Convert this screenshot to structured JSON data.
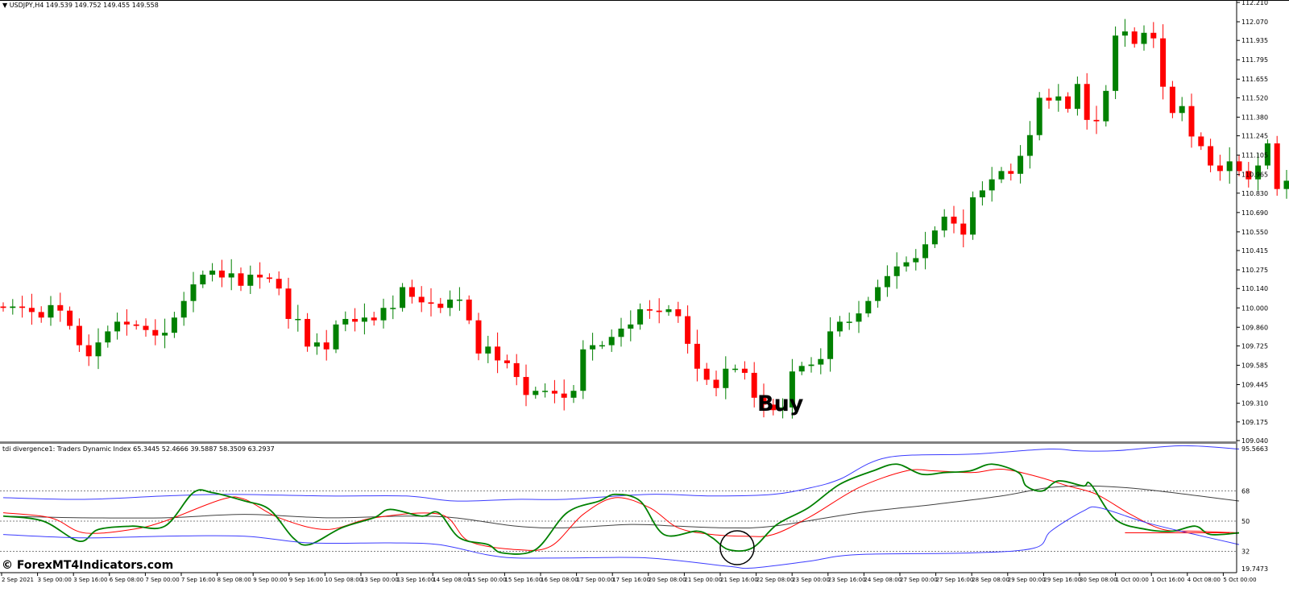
{
  "header": {
    "symbol_info": "USDJPY,H4  149.539 149.752 149.455 149.558",
    "indicator_info": "tdi divergence1: Traders Dynamic Index 65.3445 52.4666 39.5887 58.3509 63.2937"
  },
  "watermark": "© ForexMT4Indicators.com",
  "annotation": {
    "label": "Buy"
  },
  "colors": {
    "bull": "#008000",
    "bear": "#ff0000",
    "rsi_line": "#008000",
    "signal_line": "#ff0000",
    "bands": "#3b3bff",
    "base_line": "#404040",
    "levels": "#808080"
  },
  "chart_data": [
    {
      "type": "candlestick",
      "symbol": "USDJPY",
      "timeframe": "H4",
      "ylim": [
        109.04,
        112.21
      ],
      "y_ticks": [
        "112.210",
        "112.070",
        "111.935",
        "111.795",
        "111.655",
        "111.520",
        "111.380",
        "111.245",
        "111.105",
        "110.965",
        "110.830",
        "110.690",
        "110.550",
        "110.415",
        "110.275",
        "110.140",
        "110.000",
        "109.860",
        "109.725",
        "109.585",
        "109.445",
        "109.310",
        "109.175",
        "109.040"
      ],
      "x_ticks": [
        "2 Sep 2021",
        "3 Sep 00:00",
        "3 Sep 16:00",
        "6 Sep 08:00",
        "7 Sep 00:00",
        "7 Sep 16:00",
        "8 Sep 08:00",
        "9 Sep 00:00",
        "9 Sep 16:00",
        "10 Sep 08:00",
        "13 Sep 00:00",
        "13 Sep 16:00",
        "14 Sep 08:00",
        "15 Sep 00:00",
        "15 Sep 16:00",
        "16 Sep 08:00",
        "17 Sep 00:00",
        "17 Sep 16:00",
        "20 Sep 08:00",
        "21 Sep 00:00",
        "21 Sep 16:00",
        "22 Sep 08:00",
        "23 Sep 00:00",
        "23 Sep 16:00",
        "24 Sep 08:00",
        "27 Sep 00:00",
        "27 Sep 16:00",
        "28 Sep 08:00",
        "29 Sep 00:00",
        "29 Sep 16:00",
        "30 Sep 08:00",
        "1 Oct 00:00",
        "1 Oct 16:00",
        "4 Oct 08:00",
        "5 Oct 00:00"
      ],
      "closes": [
        110.0,
        110.01,
        110.0,
        109.97,
        109.93,
        110.02,
        109.98,
        109.87,
        109.73,
        109.65,
        109.75,
        109.83,
        109.9,
        109.88,
        109.87,
        109.84,
        109.8,
        109.82,
        109.93,
        110.05,
        110.17,
        110.24,
        110.27,
        110.22,
        110.25,
        110.16,
        110.24,
        110.22,
        110.21,
        110.14,
        109.92,
        109.92,
        109.72,
        109.75,
        109.7,
        109.88,
        109.92,
        109.9,
        109.93,
        109.91,
        110.0,
        110.0,
        110.15,
        110.08,
        110.04,
        110.03,
        110.0,
        110.06,
        110.06,
        109.91,
        109.67,
        109.72,
        109.62,
        109.6,
        109.5,
        109.37,
        109.4,
        109.4,
        109.38,
        109.35,
        109.4,
        109.7,
        109.73,
        109.73,
        109.79,
        109.85,
        109.88,
        109.99,
        109.98,
        109.97,
        109.99,
        109.94,
        109.74,
        109.56,
        109.48,
        109.42,
        109.56,
        109.56,
        109.53,
        109.35,
        109.3,
        109.26,
        109.28,
        109.54,
        109.58,
        109.59,
        109.63,
        109.83,
        109.9,
        109.9,
        109.96,
        110.05,
        110.15,
        110.23,
        110.3,
        110.33,
        110.36,
        110.46,
        110.56,
        110.66,
        110.61,
        110.53,
        110.8,
        110.85,
        110.93,
        110.99,
        110.97,
        111.1,
        111.25,
        111.52,
        111.5,
        111.53,
        111.44,
        111.62,
        111.36,
        111.35,
        111.57,
        111.97,
        112.0,
        111.91,
        111.99,
        111.95,
        111.6,
        111.41,
        111.46,
        111.24,
        111.17,
        111.03,
        110.99,
        111.06,
        110.99,
        110.93,
        111.03,
        111.19,
        110.86,
        110.92,
        110.93
      ]
    },
    {
      "type": "line",
      "title": "Traders Dynamic Index",
      "ylim": [
        19.7473,
        95.5663
      ],
      "y_ticks": [
        "95.5663",
        "68",
        "50",
        "32",
        "19.7473"
      ],
      "levels": [
        68,
        50,
        32
      ],
      "series": [
        {
          "key": "upper_band",
          "color": "#3b3bff",
          "points": [
            [
              0,
              64
            ],
            [
              8.5,
              63
            ],
            [
              17,
              65
            ],
            [
              23.7,
              66
            ],
            [
              34,
              65
            ],
            [
              42.4,
              65
            ],
            [
              47.5,
              62
            ],
            [
              54,
              63
            ],
            [
              59,
              63
            ],
            [
              68,
              66
            ],
            [
              74.6,
              65
            ],
            [
              81,
              66
            ],
            [
              85,
              70
            ],
            [
              88,
              75
            ],
            [
              93,
              88
            ],
            [
              102,
              90
            ],
            [
              110,
              93
            ],
            [
              113,
              92
            ],
            [
              117,
              92
            ],
            [
              124,
              95
            ],
            [
              130,
              93
            ]
          ]
        },
        {
          "key": "base_line",
          "color": "#404040",
          "points": [
            [
              0,
              53
            ],
            [
              8.5,
              52
            ],
            [
              17,
              52
            ],
            [
              25.4,
              54
            ],
            [
              34,
              52
            ],
            [
              42.4,
              53
            ],
            [
              47.5,
              52
            ],
            [
              54,
              47
            ],
            [
              59,
              46
            ],
            [
              66,
              48
            ],
            [
              71,
              47
            ],
            [
              76,
              46
            ],
            [
              81,
              47
            ],
            [
              90,
              55
            ],
            [
              98,
              60
            ],
            [
              105,
              65
            ],
            [
              110,
              70
            ],
            [
              114.5,
              71
            ],
            [
              120,
              69
            ],
            [
              130,
              62
            ]
          ]
        },
        {
          "key": "signal_line",
          "color": "#ff0000",
          "points": [
            [
              0,
              55
            ],
            [
              5,
              52
            ],
            [
              8.5,
              43
            ],
            [
              13.5,
              45
            ],
            [
              17,
              50
            ],
            [
              23,
              63
            ],
            [
              25.4,
              63
            ],
            [
              29,
              52
            ],
            [
              34,
              45
            ],
            [
              39,
              52
            ],
            [
              46,
              54
            ],
            [
              49,
              38
            ],
            [
              54,
              33
            ],
            [
              57.6,
              35
            ],
            [
              61,
              54
            ],
            [
              64.4,
              64
            ],
            [
              68,
              58
            ],
            [
              71,
              46
            ],
            [
              74.6,
              42
            ],
            [
              78,
              41
            ],
            [
              81,
              42
            ],
            [
              85,
              53
            ],
            [
              90,
              70
            ],
            [
              95,
              80
            ],
            [
              98,
              80
            ],
            [
              102,
              79
            ],
            [
              105,
              81
            ],
            [
              108.5,
              77
            ],
            [
              112,
              71
            ],
            [
              115,
              66
            ],
            [
              118.6,
              54
            ],
            [
              122,
              45
            ],
            [
              125.4,
              44
            ],
            [
              130,
              43
            ]
          ]
        },
        {
          "key": "rsi_price_line",
          "color": "#008000",
          "points": [
            [
              0,
              53
            ],
            [
              4.2,
              50
            ],
            [
              8,
              38
            ],
            [
              10,
              45
            ],
            [
              13.5,
              47
            ],
            [
              17,
              47
            ],
            [
              20,
              67
            ],
            [
              22,
              67
            ],
            [
              25.4,
              62
            ],
            [
              28,
              57
            ],
            [
              30.5,
              40
            ],
            [
              32.2,
              36
            ],
            [
              35.6,
              46
            ],
            [
              39,
              52
            ],
            [
              40.7,
              57
            ],
            [
              44,
              53
            ],
            [
              45.8,
              55
            ],
            [
              48,
              40
            ],
            [
              51,
              36
            ],
            [
              52.5,
              31
            ],
            [
              56,
              33
            ],
            [
              59.3,
              55
            ],
            [
              62.7,
              62
            ],
            [
              64.4,
              66
            ],
            [
              67,
              62
            ],
            [
              69.5,
              42
            ],
            [
              73,
              44
            ],
            [
              74.6,
              40
            ],
            [
              76.3,
              33
            ],
            [
              78.8,
              34
            ],
            [
              81.4,
              48
            ],
            [
              84.7,
              58
            ],
            [
              88,
              72
            ],
            [
              91.5,
              80
            ],
            [
              94,
              84
            ],
            [
              96.6,
              78
            ],
            [
              99,
              79
            ],
            [
              101.7,
              80
            ],
            [
              104,
              84
            ],
            [
              106.8,
              79
            ],
            [
              107.6,
              71
            ],
            [
              109.3,
              68
            ],
            [
              111,
              74
            ],
            [
              113.6,
              71
            ],
            [
              114.4,
              72
            ],
            [
              117,
              51
            ],
            [
              120.3,
              45
            ],
            [
              123,
              44
            ],
            [
              125.4,
              47
            ],
            [
              127,
              42
            ],
            [
              130,
              43
            ]
          ]
        },
        {
          "key": "lower_band",
          "color": "#3b3bff",
          "points": [
            [
              0,
              42
            ],
            [
              8.5,
              40
            ],
            [
              17,
              41
            ],
            [
              25.4,
              41
            ],
            [
              32.2,
              37
            ],
            [
              40.7,
              37
            ],
            [
              45.8,
              36
            ],
            [
              50.8,
              30
            ],
            [
              54,
              28
            ],
            [
              59.3,
              28
            ],
            [
              67.8,
              28
            ],
            [
              76.3,
              23
            ],
            [
              78.8,
              22
            ],
            [
              84.7,
              26
            ],
            [
              89.8,
              30
            ],
            [
              101.7,
              31
            ],
            [
              108.5,
              34
            ],
            [
              110.2,
              44
            ],
            [
              113.6,
              56
            ],
            [
              115.3,
              58
            ],
            [
              120.3,
              49
            ],
            [
              125.4,
              42
            ],
            [
              130,
              36
            ]
          ]
        }
      ]
    }
  ]
}
